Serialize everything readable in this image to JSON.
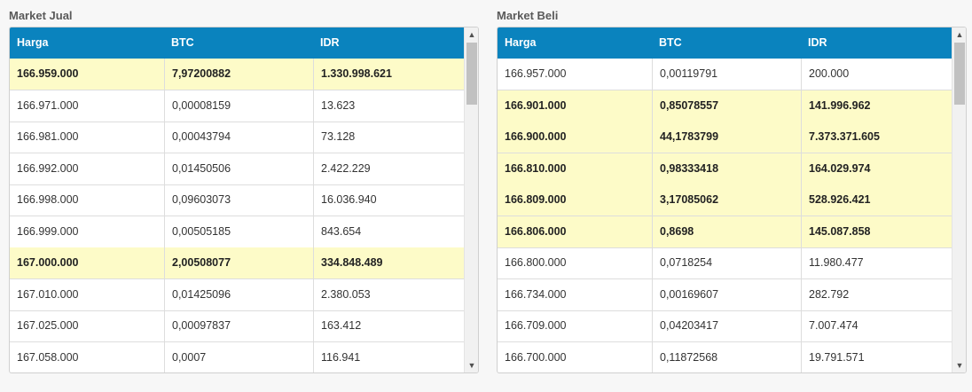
{
  "colors": {
    "header_bg": "#0a83be",
    "highlight_row": "#fdfbc8"
  },
  "market_jual": {
    "title": "Market Jual",
    "columns": [
      "Harga",
      "BTC",
      "IDR"
    ],
    "rows": [
      {
        "harga": "166.959.000",
        "btc": "7,97200882",
        "idr": "1.330.998.621",
        "highlight": true
      },
      {
        "harga": "166.971.000",
        "btc": "0,00008159",
        "idr": "13.623",
        "highlight": false
      },
      {
        "harga": "166.981.000",
        "btc": "0,00043794",
        "idr": "73.128",
        "highlight": false
      },
      {
        "harga": "166.992.000",
        "btc": "0,01450506",
        "idr": "2.422.229",
        "highlight": false
      },
      {
        "harga": "166.998.000",
        "btc": "0,09603073",
        "idr": "16.036.940",
        "highlight": false
      },
      {
        "harga": "166.999.000",
        "btc": "0,00505185",
        "idr": "843.654",
        "highlight": false
      },
      {
        "harga": "167.000.000",
        "btc": "2,00508077",
        "idr": "334.848.489",
        "highlight": true
      },
      {
        "harga": "167.010.000",
        "btc": "0,01425096",
        "idr": "2.380.053",
        "highlight": false
      },
      {
        "harga": "167.025.000",
        "btc": "0,00097837",
        "idr": "163.412",
        "highlight": false
      },
      {
        "harga": "167.058.000",
        "btc": "0,0007",
        "idr": "116.941",
        "highlight": false
      }
    ]
  },
  "market_beli": {
    "title": "Market Beli",
    "columns": [
      "Harga",
      "BTC",
      "IDR"
    ],
    "rows": [
      {
        "harga": "166.957.000",
        "btc": "0,00119791",
        "idr": "200.000",
        "highlight": false
      },
      {
        "harga": "166.901.000",
        "btc": "0,85078557",
        "idr": "141.996.962",
        "highlight": true
      },
      {
        "harga": "166.900.000",
        "btc": "44,1783799",
        "idr": "7.373.371.605",
        "highlight": true
      },
      {
        "harga": "166.810.000",
        "btc": "0,98333418",
        "idr": "164.029.974",
        "highlight": true
      },
      {
        "harga": "166.809.000",
        "btc": "3,17085062",
        "idr": "528.926.421",
        "highlight": true
      },
      {
        "harga": "166.806.000",
        "btc": "0,8698",
        "idr": "145.087.858",
        "highlight": true
      },
      {
        "harga": "166.800.000",
        "btc": "0,0718254",
        "idr": "11.980.477",
        "highlight": false
      },
      {
        "harga": "166.734.000",
        "btc": "0,00169607",
        "idr": "282.792",
        "highlight": false
      },
      {
        "harga": "166.709.000",
        "btc": "0,04203417",
        "idr": "7.007.474",
        "highlight": false
      },
      {
        "harga": "166.700.000",
        "btc": "0,11872568",
        "idr": "19.791.571",
        "highlight": false
      }
    ]
  },
  "icons": {
    "scroll_up": "chevron-up-icon",
    "scroll_down": "chevron-down-icon"
  }
}
